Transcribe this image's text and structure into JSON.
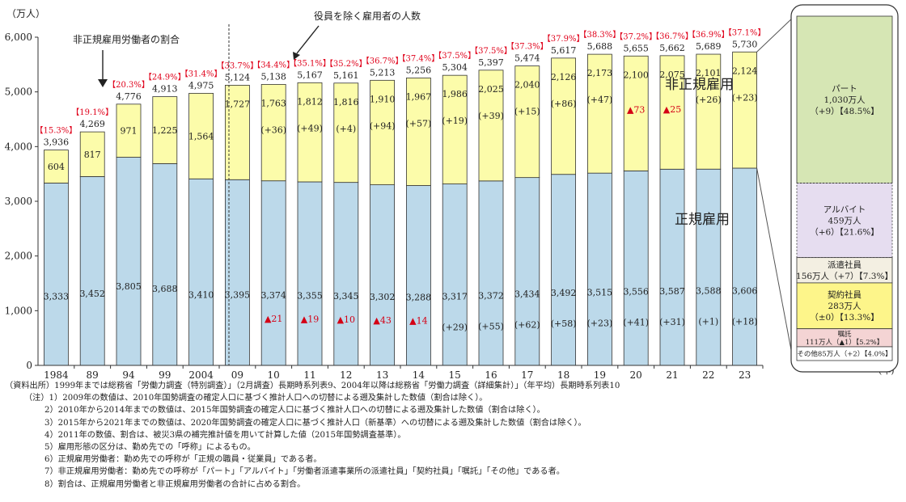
{
  "chart_data": {
    "type": "bar",
    "stacked": true,
    "ylabel": "（万人）",
    "xunit": "(年)",
    "ylim": [
      0,
      6000
    ],
    "yticks": [
      "0",
      "1,000",
      "2,000",
      "3,000",
      "4,000",
      "5,000",
      "6,000"
    ],
    "categories": [
      "1984",
      "89",
      "94",
      "99",
      "2004",
      "09",
      "10",
      "11",
      "12",
      "13",
      "14",
      "15",
      "16",
      "17",
      "18",
      "19",
      "20",
      "21",
      "22",
      "23"
    ],
    "regular_values": [
      3333,
      3452,
      3805,
      3688,
      3410,
      3395,
      3374,
      3355,
      3345,
      3302,
      3288,
      3317,
      3372,
      3434,
      3492,
      3515,
      3556,
      3587,
      3588,
      3606
    ],
    "regular_labels": [
      "3,333",
      "3,452",
      "3,805",
      "3,688",
      "3,410",
      "3,395",
      "3,374",
      "3,355",
      "3,345",
      "3,302",
      "3,288",
      "3,317",
      "3,372",
      "3,434",
      "3,492",
      "3,515",
      "3,556",
      "3,587",
      "3,588",
      "3,606"
    ],
    "regular_changes": [
      "",
      "",
      "",
      "",
      "",
      "",
      "▲21",
      "▲19",
      "▲10",
      "▲43",
      "▲14",
      "(+29)",
      "(+55)",
      "(+62)",
      "(+58)",
      "(+23)",
      "(+41)",
      "(+31)",
      "(+1)",
      "(+18)"
    ],
    "nonregular_values": [
      604,
      817,
      971,
      1225,
      1564,
      1727,
      1763,
      1812,
      1816,
      1910,
      1967,
      1986,
      2025,
      2040,
      2126,
      2173,
      2100,
      2075,
      2101,
      2124
    ],
    "nonregular_labels": [
      "604",
      "817",
      "971",
      "1,225",
      "1,564",
      "1,727",
      "1,763",
      "1,812",
      "1,816",
      "1,910",
      "1,967",
      "1,986",
      "2,025",
      "2,040",
      "2,126",
      "2,173",
      "2,100",
      "2,075",
      "2,101",
      "2,124"
    ],
    "nonregular_changes": [
      "",
      "",
      "",
      "",
      "",
      "",
      "(+36)",
      "(+49)",
      "(+4)",
      "(+94)",
      "(+57)",
      "(+19)",
      "(+39)",
      "(+15)",
      "(+86)",
      "(+47)",
      "▲73",
      "▲25",
      "(+26)",
      "(+23)"
    ],
    "total_labels": [
      "3,936",
      "4,269",
      "4,776",
      "4,913",
      "4,975",
      "5,124",
      "5,138",
      "5,167",
      "5,161",
      "5,213",
      "5,256",
      "5,304",
      "5,397",
      "5,474",
      "5,617",
      "5,688",
      "5,655",
      "5,662",
      "5,689",
      "5,730"
    ],
    "ratio_labels": [
      "【15.3%】",
      "【19.1%】",
      "【20.3%】",
      "【24.9%】",
      "【31.4%】",
      "【33.7%】",
      "【34.4%】",
      "【35.1%】",
      "【35.2%】",
      "【36.7%】",
      "【37.4%】",
      "【37.5%】",
      "【37.5%】",
      "【37.3%】",
      "【37.9%】",
      "【38.3%】",
      "【37.2%】",
      "【36.7%】",
      "【36.9%】",
      "【37.1%】"
    ],
    "series_labels": {
      "nonregular": "非正規雇用",
      "regular": "正規雇用"
    },
    "annotations": {
      "ratio_note": "非正規雇用労働者の割合",
      "total_note": "役員を除く雇用者の人数"
    },
    "breakdown": [
      {
        "name": "パート",
        "value": 1030,
        "lines": [
          "パート",
          "1,030万人",
          "（+9）【48.5%】"
        ],
        "color": "#d6e6b4"
      },
      {
        "name": "アルバイト",
        "value": 459,
        "lines": [
          "アルバイト",
          "459万人",
          "（+6）【21.6%】"
        ],
        "color": "#e6ddf0"
      },
      {
        "name": "派遣社員",
        "value": 156,
        "lines": [
          "派遣社員",
          "156万人（+7）【7.3%】"
        ],
        "color": "#f3efe2"
      },
      {
        "name": "契約社員",
        "value": 283,
        "lines": [
          "契約社員",
          "283万人",
          "（±0）【13.3%】"
        ],
        "color": "#fdf58a"
      },
      {
        "name": "嘱託",
        "value": 111,
        "lines": [
          "嘱託",
          "111万人（▲1）【5.2%】"
        ],
        "color": "#f4d4d4"
      },
      {
        "name": "その他",
        "value": 85,
        "lines": [
          "その他85万人（+2）【4.0%】"
        ],
        "color": "#ffffff"
      }
    ],
    "colors": {
      "regular": "#bcd9ea",
      "nonregular": "#fcfcaa",
      "ratio_text": "#e0001a",
      "axis": "#333333"
    }
  },
  "notes": [
    "（資料出所）1999年までは総務省「労働力調査（特別調査）」（2月調査）長期時系列表9、2004年以降は総務省「労働力調査（詳細集計）」（年平均）長期時系列表10",
    "（注）1）2009年の数値は、2010年国勢調査の確定人口に基づく推計人口への切替による遡及集計した数値（割合は除く）。",
    "2）2010年から2014年までの数値は、2015年国勢調査の確定人口に基づく推計人口への切替による遡及集計した数値（割合は除く）。",
    "3）2015年から2021年までの数値は、2020年国勢調査の確定人口に基づく推計人口（新基準）への切替による遡及集計した数値（割合は除く）。",
    "4）2011年の数値、割合は、被災3県の補完推計値を用いて計算した値（2015年国勢調査基準）。",
    "5）雇用形態の区分は、勤め先での「呼称」によるもの。",
    "6）正規雇用労働者：勤め先での呼称が「正規の職員・従業員」である者。",
    "7）非正規雇用労働者：勤め先での呼称が「パート」「アルバイト」「労働者派遣事業所の派遣社員」「契約社員」「嘱託」「その他」である者。",
    "8）割合は、正規雇用労働者と非正規雇用労働者の合計に占める割合。"
  ]
}
